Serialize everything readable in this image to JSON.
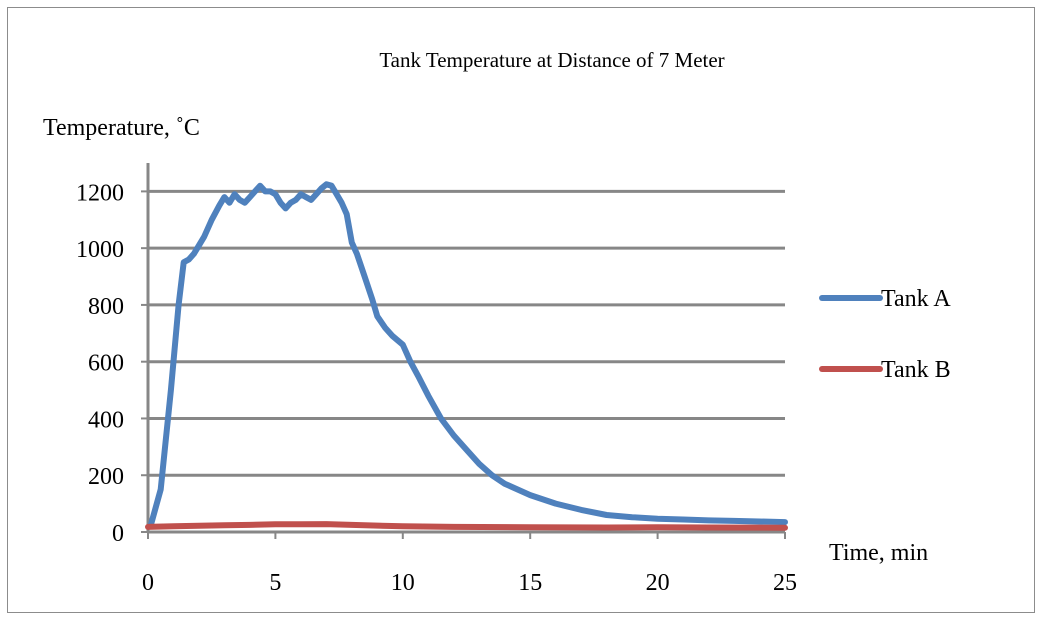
{
  "chart_data": {
    "type": "line",
    "title": "Tank Temperature at Distance of 7 Meter",
    "ylabel": "Temperature, ˚C",
    "xlabel": "Time, min",
    "xlim": [
      0,
      25
    ],
    "ylim": [
      0,
      1300
    ],
    "x_ticks": [
      "0",
      "5",
      "10",
      "15",
      "20",
      "25"
    ],
    "y_ticks": [
      "0",
      "200",
      "400",
      "600",
      "800",
      "1000",
      "1200"
    ],
    "x_tick_values": [
      0,
      5,
      10,
      15,
      20,
      25
    ],
    "y_tick_values": [
      0,
      200,
      400,
      600,
      800,
      1000,
      1200
    ],
    "grid": "horizontal",
    "legend_position": "right",
    "series": [
      {
        "name": "Tank A",
        "color": "#4f81bd",
        "x": [
          0.1,
          0.5,
          0.9,
          1.2,
          1.4,
          1.6,
          1.8,
          2.0,
          2.2,
          2.5,
          2.8,
          3.0,
          3.2,
          3.4,
          3.6,
          3.8,
          4.0,
          4.2,
          4.4,
          4.6,
          4.8,
          5.0,
          5.2,
          5.4,
          5.6,
          5.8,
          6.0,
          6.2,
          6.4,
          6.6,
          6.8,
          7.0,
          7.2,
          7.4,
          7.6,
          7.8,
          8.0,
          8.2,
          8.5,
          8.8,
          9.0,
          9.3,
          9.6,
          10.0,
          10.3,
          10.6,
          11.0,
          11.5,
          12.0,
          12.5,
          13.0,
          13.5,
          14.0,
          15.0,
          16.0,
          17.0,
          18.0,
          19.0,
          20.0,
          21.0,
          22.0,
          23.0,
          24.0,
          25.0
        ],
        "values": [
          20,
          150,
          500,
          800,
          950,
          960,
          980,
          1010,
          1040,
          1100,
          1150,
          1180,
          1160,
          1190,
          1170,
          1160,
          1180,
          1200,
          1220,
          1200,
          1200,
          1190,
          1160,
          1140,
          1160,
          1170,
          1190,
          1180,
          1170,
          1190,
          1210,
          1225,
          1220,
          1190,
          1160,
          1120,
          1020,
          980,
          900,
          820,
          760,
          720,
          690,
          660,
          600,
          550,
          480,
          400,
          340,
          290,
          240,
          200,
          170,
          130,
          100,
          78,
          60,
          52,
          47,
          44,
          41,
          39,
          37,
          35
        ]
      },
      {
        "name": "Tank B",
        "color": "#c0504d",
        "x": [
          0.0,
          1.0,
          2.0,
          3.0,
          4.0,
          5.0,
          6.0,
          7.0,
          8.0,
          10.0,
          12.0,
          15.0,
          18.0,
          20.0,
          22.0,
          25.0
        ],
        "values": [
          18,
          20,
          22,
          24,
          25,
          27,
          27,
          28,
          25,
          20,
          18,
          17,
          16,
          17,
          16,
          15
        ]
      }
    ]
  }
}
